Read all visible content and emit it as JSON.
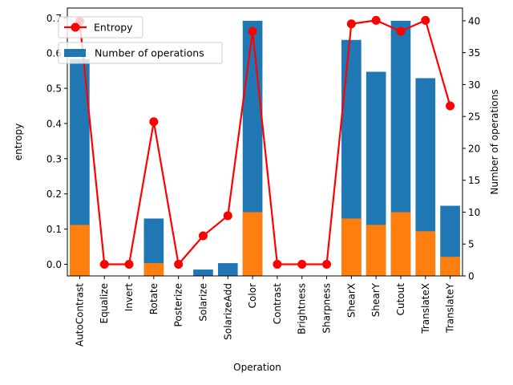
{
  "chart_data": {
    "type": "bar+line",
    "xlabel": "Operation",
    "ylabel_left": "entropy",
    "ylabel_right": "Number of operations",
    "categories": [
      "AutoContrast",
      "Equalize",
      "Invert",
      "Rotate",
      "Posterize",
      "Solarize",
      "SolarizeAdd",
      "Color",
      "Contrast",
      "Brightness",
      "Sharpness",
      "ShearX",
      "ShearY",
      "Cutout",
      "TranslateX",
      "TranslateY"
    ],
    "left_axis": {
      "ylim": [
        -0.033,
        0.728
      ],
      "ticks": [
        0.0,
        0.1,
        0.2,
        0.3,
        0.4,
        0.5,
        0.6,
        0.7
      ],
      "tick_labels": [
        "0.0",
        "0.1",
        "0.2",
        "0.3",
        "0.4",
        "0.5",
        "0.6",
        "0.7"
      ]
    },
    "right_axis": {
      "ylim": [
        0,
        42
      ],
      "ticks": [
        0,
        5,
        10,
        15,
        20,
        25,
        30,
        35,
        40
      ],
      "tick_labels": [
        "0",
        "5",
        "10",
        "15",
        "20",
        "25",
        "30",
        "35",
        "40"
      ]
    },
    "series": [
      {
        "name": "Number of operations",
        "type": "bar",
        "axis": "right",
        "color": "#1f77b4",
        "values": [
          34,
          0,
          0,
          9,
          0,
          1,
          2,
          40,
          0,
          0,
          0,
          37,
          32,
          40,
          31,
          11
        ]
      },
      {
        "name": "",
        "type": "bar",
        "axis": "right",
        "color": "#ff7f0e",
        "values": [
          8,
          0,
          0,
          2,
          0,
          0,
          0,
          10,
          0,
          0,
          0,
          9,
          8,
          10,
          7,
          3
        ]
      },
      {
        "name": "Entropy",
        "type": "line",
        "axis": "left",
        "color": "#ff0000",
        "marker": "circle",
        "values": [
          0.69,
          0.0,
          0.0,
          0.405,
          0.0,
          0.081,
          0.138,
          0.662,
          0.0,
          0.0,
          0.0,
          0.683,
          0.693,
          0.662,
          0.693,
          0.45
        ]
      }
    ],
    "legends": [
      {
        "placement": "top-left",
        "entries": [
          "Entropy"
        ]
      },
      {
        "placement": "top-left",
        "entries": [
          "Number of operations"
        ]
      }
    ],
    "grid": false
  }
}
